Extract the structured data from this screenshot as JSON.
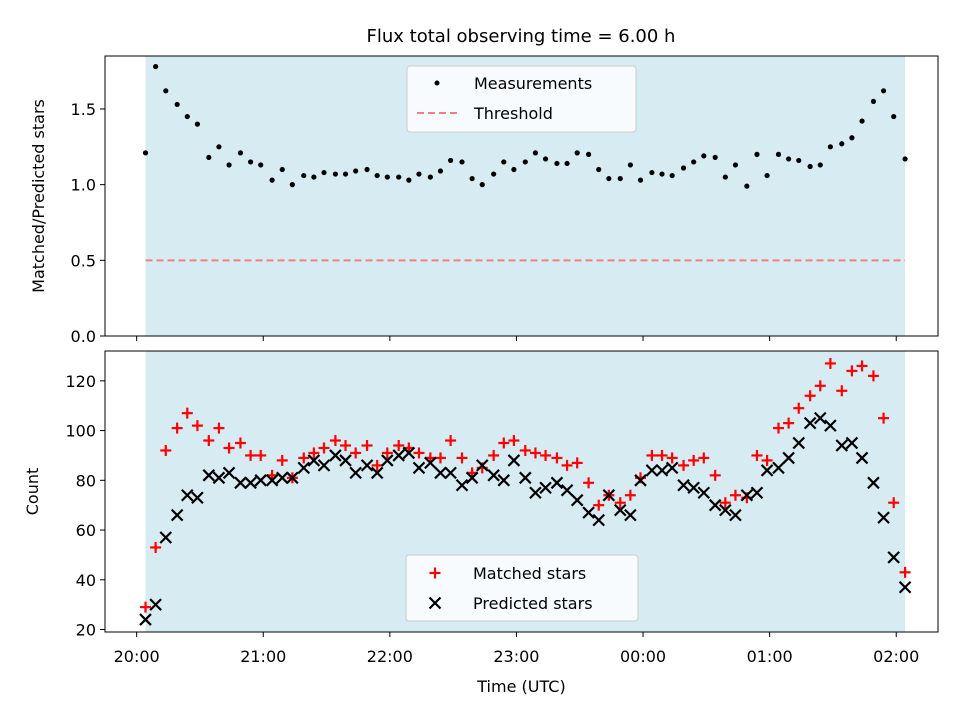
{
  "chart_data": [
    {
      "type": "scatter",
      "title": "Flux total observing time = 6.00 h",
      "xlabel": "",
      "ylabel": "Matched/Predicted stars",
      "ylim": [
        0,
        1.85
      ],
      "yticks": [
        "0.0",
        "0.5",
        "1.0",
        "1.5"
      ],
      "ytick_values": [
        0,
        0.5,
        1.0,
        1.5
      ],
      "grid": false,
      "legend_position": "top-center",
      "shaded_span": {
        "from_hours": 0.07,
        "to_hours": 6.07,
        "color": "#add8e6"
      },
      "series": [
        {
          "name": "Measurements",
          "marker": "dot",
          "color": "#000000",
          "x_hours": [
            0.07,
            0.15,
            0.23,
            0.32,
            0.4,
            0.48,
            0.57,
            0.65,
            0.73,
            0.82,
            0.9,
            0.98,
            1.07,
            1.15,
            1.23,
            1.32,
            1.4,
            1.48,
            1.57,
            1.65,
            1.73,
            1.82,
            1.9,
            1.98,
            2.07,
            2.15,
            2.23,
            2.32,
            2.4,
            2.48,
            2.57,
            2.65,
            2.73,
            2.82,
            2.9,
            2.98,
            3.07,
            3.15,
            3.23,
            3.32,
            3.4,
            3.48,
            3.57,
            3.65,
            3.73,
            3.82,
            3.9,
            3.98,
            4.07,
            4.15,
            4.23,
            4.32,
            4.4,
            4.48,
            4.57,
            4.65,
            4.73,
            4.82,
            4.9,
            4.98,
            5.07,
            5.15,
            5.23,
            5.32,
            5.4,
            5.48,
            5.57,
            5.65,
            5.73,
            5.82,
            5.9,
            5.98,
            6.07
          ],
          "values": [
            1.21,
            1.78,
            1.62,
            1.53,
            1.45,
            1.4,
            1.18,
            1.25,
            1.13,
            1.21,
            1.15,
            1.13,
            1.03,
            1.1,
            1.0,
            1.06,
            1.05,
            1.08,
            1.07,
            1.07,
            1.09,
            1.1,
            1.06,
            1.05,
            1.05,
            1.03,
            1.07,
            1.05,
            1.09,
            1.16,
            1.15,
            1.04,
            1.0,
            1.07,
            1.15,
            1.1,
            1.15,
            1.21,
            1.17,
            1.14,
            1.14,
            1.21,
            1.2,
            1.1,
            1.04,
            1.04,
            1.13,
            1.03,
            1.08,
            1.07,
            1.06,
            1.11,
            1.15,
            1.19,
            1.18,
            1.05,
            1.13,
            0.99,
            1.2,
            1.06,
            1.2,
            1.17,
            1.16,
            1.12,
            1.13,
            1.25,
            1.27,
            1.31,
            1.42,
            1.55,
            1.62,
            1.45,
            1.17
          ]
        },
        {
          "name": "Threshold",
          "marker": "dashed-line",
          "color": "#f08080",
          "value": 0.5
        }
      ]
    },
    {
      "type": "scatter",
      "title": "",
      "xlabel": "Time (UTC)",
      "ylabel": "Count",
      "ylim": [
        19,
        132
      ],
      "yticks": [
        "20",
        "40",
        "60",
        "80",
        "100",
        "120"
      ],
      "ytick_values": [
        20,
        40,
        60,
        80,
        100,
        120
      ],
      "xticks": [
        "20:00",
        "21:00",
        "22:00",
        "23:00",
        "00:00",
        "01:00",
        "02:00"
      ],
      "xtick_hours": [
        0,
        1,
        2,
        3,
        4,
        5,
        6
      ],
      "x_start_time": "20:00",
      "xlim_hours": [
        -0.25,
        6.33
      ],
      "grid": false,
      "legend_position": "bottom-center",
      "series": [
        {
          "name": "Matched stars",
          "marker": "plus",
          "color": "#ff0000",
          "values": [
            29,
            53,
            92,
            101,
            107,
            102,
            96,
            101,
            93,
            95,
            90,
            90,
            82,
            88,
            81,
            89,
            91,
            93,
            96,
            94,
            91,
            94,
            86,
            91,
            94,
            93,
            91,
            89,
            89,
            96,
            89,
            83,
            85,
            90,
            95,
            96,
            92,
            91,
            90,
            89,
            86,
            87,
            79,
            70,
            74,
            71,
            74,
            81,
            90,
            90,
            89,
            86,
            88,
            89,
            82,
            71,
            74,
            73,
            90,
            88,
            101,
            103,
            109,
            114,
            118,
            127,
            116,
            124,
            126,
            122,
            105,
            71,
            43
          ]
        },
        {
          "name": "Predicted stars",
          "marker": "x",
          "color": "#000000",
          "values": [
            24,
            30,
            57,
            66,
            74,
            73,
            82,
            81,
            83,
            79,
            79,
            80,
            80,
            81,
            81,
            85,
            88,
            86,
            90,
            88,
            83,
            86,
            83,
            88,
            90,
            91,
            85,
            87,
            83,
            83,
            78,
            81,
            86,
            82,
            80,
            88,
            81,
            75,
            77,
            79,
            76,
            72,
            67,
            64,
            74,
            68,
            66,
            80,
            84,
            84,
            85,
            78,
            77,
            75,
            70,
            68,
            66,
            74,
            75,
            84,
            85,
            89,
            95,
            103,
            105,
            102,
            94,
            95,
            89,
            79,
            65,
            49,
            37
          ]
        }
      ]
    }
  ]
}
